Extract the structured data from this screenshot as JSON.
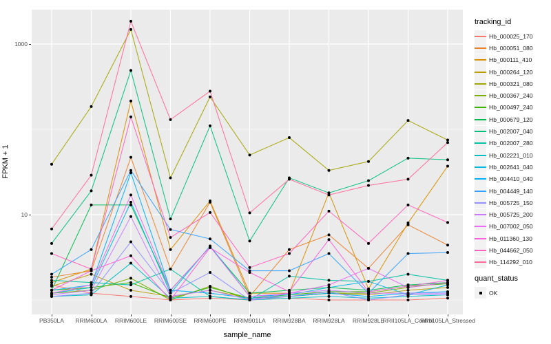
{
  "chart_data": {
    "type": "line",
    "title": "",
    "xlabel": "sample_name",
    "ylabel": "FPKM + 1",
    "yscale": "log10",
    "ylim": [
      1,
      2000
    ],
    "grid": "on",
    "legend_position": "right",
    "panel_bg": "#EBEBEB",
    "grid_color": "#FFFFFF",
    "point_color": "#000000",
    "ytick_values": [
      1000,
      10
    ],
    "ytick_labels": [
      "1000",
      "10"
    ],
    "grid_major_values": [
      10,
      1000
    ],
    "grid_minor_values": [
      1,
      100
    ],
    "categories": [
      "PB350LA",
      "RRIM600LA",
      "RRIM600LE",
      "RRIM600SE",
      "RRIM600PE",
      "RRIM901LA",
      "RRIM928BA",
      "RRIM928LA",
      "RRIM928LE",
      "RRII105LA_Control",
      "RRII105LA_Stressed"
    ],
    "series": [
      {
        "name": "Hb_000025_170",
        "color": "#F8766D",
        "values": [
          1.5,
          1.2,
          1.1,
          1.0,
          1.05,
          1.0,
          1.05,
          1.0,
          1.0,
          1.0,
          1.05
        ]
      },
      {
        "name": "Hb_000051_080",
        "color": "#EA8331",
        "values": [
          1.85,
          2.2,
          47,
          2.3,
          14,
          1.1,
          3.9,
          5.8,
          2.35,
          7.6,
          4.4
        ]
      },
      {
        "name": "Hb_000111_410",
        "color": "#D89000",
        "values": [
          1.6,
          2.3,
          215,
          3.9,
          14.5,
          1.2,
          1.2,
          18,
          1.35,
          8.0,
          37
        ]
      },
      {
        "name": "Hb_000264_120",
        "color": "#C09B00",
        "values": [
          1.45,
          2.0,
          1.3,
          1.1,
          1.3,
          1.05,
          1.1,
          1.2,
          1.15,
          1.3,
          1.4
        ]
      },
      {
        "name": "Hb_000321_080",
        "color": "#A3A500",
        "values": [
          39,
          185,
          1480,
          27,
          240,
          50,
          80,
          33,
          42,
          127,
          75
        ]
      },
      {
        "name": "Hb_000367_240",
        "color": "#7CAE00",
        "values": [
          1.2,
          1.3,
          1.8,
          1.0,
          1.45,
          1.0,
          1.1,
          1.2,
          1.2,
          1.4,
          1.6
        ]
      },
      {
        "name": "Hb_000497_240",
        "color": "#39B600",
        "values": [
          1.3,
          1.4,
          1.6,
          1.05,
          1.4,
          1.05,
          1.15,
          1.25,
          1.25,
          1.45,
          1.55
        ]
      },
      {
        "name": "Hb_000679_120",
        "color": "#00BB4E",
        "values": [
          1.3,
          13,
          13,
          1.3,
          4.2,
          1.2,
          1.3,
          1.4,
          1.3,
          1.5,
          1.6
        ]
      },
      {
        "name": "Hb_002007_040",
        "color": "#00BF7D",
        "values": [
          4.6,
          19,
          490,
          8.9,
          110,
          4.9,
          27,
          18,
          25,
          46,
          44
        ]
      },
      {
        "name": "Hb_002007_280",
        "color": "#00C1A3",
        "values": [
          1.7,
          1.6,
          1.5,
          2.3,
          1.1,
          1.0,
          1.9,
          1.7,
          1.65,
          2.0,
          1.7
        ]
      },
      {
        "name": "Hb_002221_010",
        "color": "#00BFC4",
        "values": [
          1.1,
          1.15,
          2.7,
          1.05,
          1.1,
          1.0,
          1.05,
          1.1,
          1.05,
          1.1,
          1.15
        ]
      },
      {
        "name": "Hb_002641_040",
        "color": "#00BAE0",
        "values": [
          1.2,
          1.4,
          14,
          1.2,
          4.3,
          1.1,
          1.15,
          1.4,
          1.65,
          1.15,
          1.5
        ]
      },
      {
        "name": "Hb_004410_040",
        "color": "#00B0F6",
        "values": [
          1.3,
          1.5,
          31,
          1.3,
          1.2,
          1.05,
          1.1,
          1.2,
          1.1,
          1.2,
          1.25
        ]
      },
      {
        "name": "Hb_004449_140",
        "color": "#35A2FF",
        "values": [
          2.0,
          3.9,
          33,
          6.7,
          5.2,
          2.2,
          2.2,
          3.5,
          1.2,
          3.5,
          3.6
        ]
      },
      {
        "name": "Hb_005725_150",
        "color": "#9590FF",
        "values": [
          1.1,
          1.2,
          4.8,
          1.2,
          2.1,
          1.0,
          1.1,
          1.25,
          1.0,
          1.15,
          1.15
        ]
      },
      {
        "name": "Hb_005725_200",
        "color": "#C77CFF",
        "values": [
          1.15,
          1.3,
          9.5,
          1.1,
          1.3,
          1.0,
          1.2,
          1.3,
          1.2,
          1.2,
          1.2
        ]
      },
      {
        "name": "Hb_007002_050",
        "color": "#E76BF3",
        "values": [
          1.2,
          1.5,
          17,
          1.3,
          4.2,
          1.1,
          1.2,
          1.5,
          2.35,
          1.4,
          1.6
        ]
      },
      {
        "name": "Hb_011360_130",
        "color": "#FA62DB",
        "values": [
          1.3,
          2.2,
          3.3,
          1.0,
          4.1,
          2.1,
          1.25,
          5.1,
          1.25,
          1.45,
          1.7
        ]
      },
      {
        "name": "Hb_044662_050",
        "color": "#FF62BC",
        "values": [
          3.5,
          2.3,
          140,
          5.4,
          10.6,
          2.4,
          3.5,
          11,
          4.6,
          13,
          8.1
        ]
      },
      {
        "name": "Hb_114292_010",
        "color": "#FF6A98",
        "values": [
          6.8,
          29,
          1850,
          130,
          280,
          10.5,
          26,
          17,
          22,
          26,
          70
        ]
      }
    ],
    "legend": {
      "series_title": "tracking_id",
      "status_title": "quant_status",
      "status_label": "OK"
    }
  }
}
